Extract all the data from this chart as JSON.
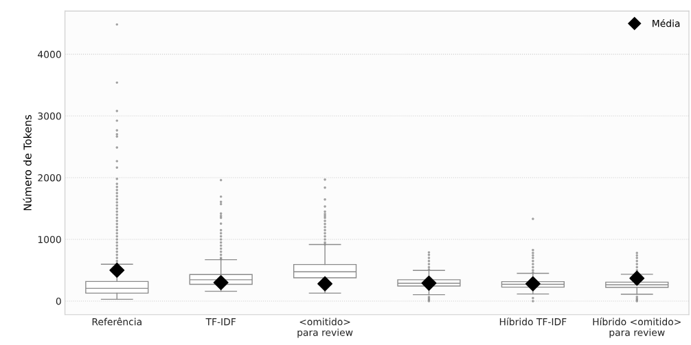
{
  "chart_data": {
    "type": "box",
    "ylabel": "Número de Tokens",
    "categories": [
      "Referência",
      "TF-IDF",
      "<omitido>\npara review",
      null,
      "Híbrido TF-IDF",
      "Híbrido <omitido>\npara review"
    ],
    "boxes": [
      {
        "low": 29,
        "q1": 129,
        "median": 207,
        "q3": 318,
        "high": 597,
        "outliers": [
          4483,
          3541,
          3080,
          2924,
          2766,
          2703,
          2666,
          2490,
          2268,
          2165,
          1980,
          1900,
          1850,
          1800,
          1750,
          1700,
          1650,
          1600,
          1550,
          1500,
          1450,
          1400,
          1350,
          1300,
          1250,
          1200,
          1150,
          1100,
          1050,
          1000,
          950,
          900,
          850,
          800,
          750,
          700,
          650,
          610
        ]
      },
      {
        "low": 159,
        "q1": 271,
        "median": 345,
        "q3": 430,
        "high": 671,
        "outliers": [
          1960,
          1693,
          1608,
          1571,
          1420,
          1380,
          1350,
          1255,
          1150,
          1100,
          1050,
          1000,
          950,
          900,
          850,
          800,
          750,
          700,
          680
        ]
      },
      {
        "low": 129,
        "q1": 378,
        "median": 474,
        "q3": 593,
        "high": 916,
        "outliers": [
          1970,
          1840,
          1648,
          1533,
          1450,
          1410,
          1380,
          1350,
          1300,
          1250,
          1200,
          1150,
          1100,
          1050,
          1000,
          950,
          920
        ]
      },
      {
        "low": 104,
        "q1": 244,
        "median": 289,
        "q3": 345,
        "high": 497,
        "outliers": [
          790,
          750,
          700,
          650,
          600,
          550,
          510,
          67,
          40,
          20,
          0
        ]
      },
      {
        "low": 115,
        "q1": 226,
        "median": 271,
        "q3": 315,
        "high": 449,
        "outliers": [
          1332,
          827,
          780,
          740,
          700,
          650,
          600,
          550,
          500,
          460,
          50,
          0
        ]
      },
      {
        "low": 111,
        "q1": 222,
        "median": 263,
        "q3": 307,
        "high": 434,
        "outliers": [
          780,
          740,
          700,
          650,
          600,
          550,
          500,
          70,
          40,
          20,
          0
        ]
      }
    ],
    "series": [
      {
        "name": "Média",
        "type": "scatter",
        "color": "#000000",
        "values": [
          500,
          300,
          280,
          290,
          280,
          370
        ]
      }
    ],
    "marker": "diamond",
    "ylim": [
      -220,
      4700
    ],
    "yticks": [
      0,
      1000,
      2000,
      3000,
      4000
    ],
    "grid": "y",
    "legend": "top right"
  }
}
